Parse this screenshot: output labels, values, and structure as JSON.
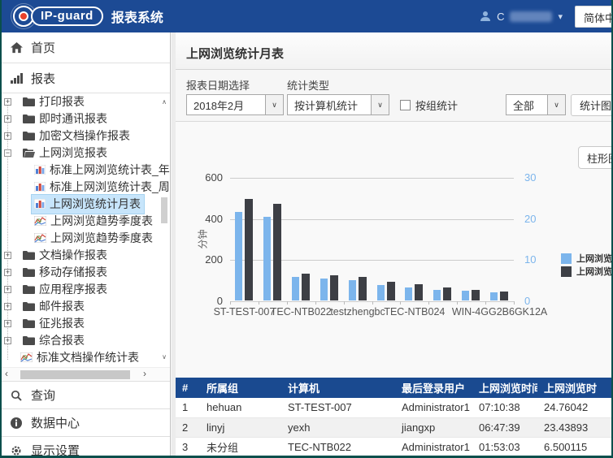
{
  "header": {
    "brand": "IP-guard",
    "app_title": "报表系统",
    "username_visible": "C",
    "language_button": "简体中"
  },
  "colors": {
    "header_blue": "#1c4a94",
    "table_header_blue": "#1a4a90",
    "bar_blue": "#7cb5ec",
    "bar_dark": "#3d3f45",
    "selected_item_bg": "#c7e5fb",
    "frame_teal": "#0a4f4c"
  },
  "icons": {
    "caret_down": "▾",
    "select_arrow": "∨",
    "expand": "+",
    "collapse": "−",
    "scroll_up": "∧",
    "scroll_down": "∨",
    "scroll_left": "‹",
    "scroll_right": "›"
  },
  "sidebar": {
    "home": "首页",
    "reports": "报表",
    "query": "查询",
    "data_center": "数据中心",
    "display_settings": "显示设置",
    "tree": [
      {
        "label": "打印报表",
        "icon": "folder",
        "expander": "+",
        "level": 1
      },
      {
        "label": "即时通讯报表",
        "icon": "folder",
        "expander": "+",
        "level": 1
      },
      {
        "label": "加密文档操作报表",
        "icon": "folder",
        "expander": "+",
        "level": 1
      },
      {
        "label": "上网浏览报表",
        "icon": "folder-open",
        "expander": "−",
        "level": 1
      },
      {
        "label": "标准上网浏览统计表_年",
        "icon": "bar-chart",
        "level": 2
      },
      {
        "label": "标准上网浏览统计表_周",
        "icon": "bar-chart",
        "level": 2
      },
      {
        "label": "上网浏览统计月表",
        "icon": "bar-chart",
        "level": 2,
        "selected": true
      },
      {
        "label": "上网浏览趋势季度表",
        "icon": "trend-chart",
        "level": 2
      },
      {
        "label": "上网浏览趋势季度表",
        "icon": "trend-chart",
        "level": 2
      },
      {
        "label": "文档操作报表",
        "icon": "folder",
        "expander": "+",
        "level": 1
      },
      {
        "label": "移动存储报表",
        "icon": "folder",
        "expander": "+",
        "level": 1
      },
      {
        "label": "应用程序报表",
        "icon": "folder",
        "expander": "+",
        "level": 1
      },
      {
        "label": "邮件报表",
        "icon": "folder",
        "expander": "+",
        "level": 1
      },
      {
        "label": "征兆报表",
        "icon": "folder",
        "expander": "+",
        "level": 1
      },
      {
        "label": "综合报表",
        "icon": "folder",
        "expander": "+",
        "level": 1
      },
      {
        "label": "标准文档操作统计表",
        "icon": "trend-chart",
        "level": 1,
        "leafOnly": true
      }
    ]
  },
  "main": {
    "page_title": "上网浏览统计月表",
    "filters": {
      "date_label": "报表日期选择",
      "date_value": "2018年2月",
      "type_label": "统计类型",
      "type_value": "按计算机统计",
      "group_checkbox_label": "按组统计",
      "scope_value": "全部",
      "view_toggle_button": "统计图 +",
      "chart_type_button": "柱形图"
    },
    "table": {
      "headers": [
        "#",
        "所属组",
        "计算机",
        "最后登录用户",
        "上网浏览时间",
        "上网浏览时"
      ],
      "rows": [
        [
          "1",
          "hehuan",
          "ST-TEST-007",
          "Administrator1",
          "07:10:38",
          "24.76042"
        ],
        [
          "2",
          "linyj",
          "yexh",
          "jiangxp",
          "06:47:39",
          "23.43893"
        ],
        [
          "3",
          "未分组",
          "TEC-NTB022",
          "Administrator1",
          "01:53:03",
          "6.500115"
        ]
      ]
    }
  },
  "chart_data": {
    "type": "bar",
    "title": "",
    "ylabel_left": "分钟",
    "axis_left": {
      "ticks": [
        600,
        400,
        200,
        0
      ],
      "max": 600
    },
    "axis_right": {
      "ticks": [
        30,
        20,
        10,
        0
      ],
      "max": 30
    },
    "n_groups": 10,
    "grid": true,
    "legend_position": "right",
    "x_labels": [
      {
        "label": "ST-TEST-007",
        "slot": 0
      },
      {
        "label": "TEC-NTB022",
        "slot": 2
      },
      {
        "label": "testzhengbc",
        "slot": 4
      },
      {
        "label": "TEC-NTB024",
        "slot": 6
      },
      {
        "label": "WIN-4GG2B6GK12A",
        "slot": 9
      }
    ],
    "series": [
      {
        "name": "上网浏览时",
        "color": "#7cb5ec",
        "axis": "left",
        "values": [
          430,
          408,
          113,
          105,
          98,
          76,
          62,
          53,
          46,
          40
        ]
      },
      {
        "name": "上网浏览时",
        "color": "#3d3f45",
        "axis": "right",
        "values": [
          24.76,
          23.44,
          6.5,
          6.05,
          5.75,
          4.5,
          3.9,
          3.1,
          2.65,
          2.25
        ]
      }
    ]
  }
}
